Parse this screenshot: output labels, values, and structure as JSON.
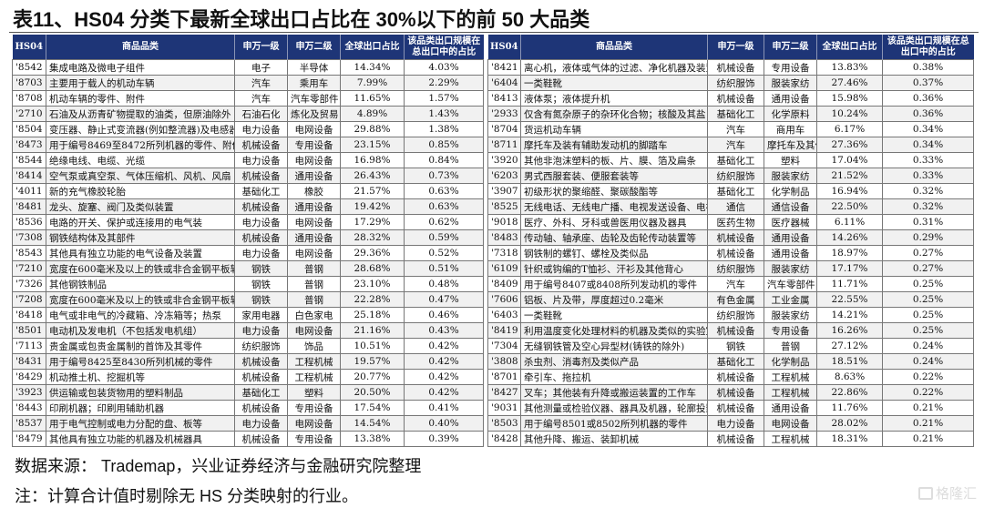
{
  "title": "表11、HS04 分类下最新全球出口占比在 30%以下的前 50 大品类",
  "columns": [
    "HS04",
    "商品品类",
    "申万一级",
    "申万二级",
    "全球出口占比",
    "该品类出口规模在总出口中的占比"
  ],
  "left_rows": [
    [
      "'8542",
      "集成电路及微电子组件",
      "电子",
      "半导体",
      "14.34%",
      "4.03%"
    ],
    [
      "'8703",
      "主要用于载人的机动车辆",
      "汽车",
      "乘用车",
      "7.99%",
      "2.29%"
    ],
    [
      "'8708",
      "机动车辆的零件、附件",
      "汽车",
      "汽车零部件",
      "11.65%",
      "1.57%"
    ],
    [
      "'2710",
      "石油及从沥青矿物提取的油类，但原油除外",
      "石油石化",
      "炼化及贸易",
      "4.89%",
      "1.43%"
    ],
    [
      "'8504",
      "变压器、静止式变流器(例如整流器)及电感器",
      "电力设备",
      "电网设备",
      "29.88%",
      "1.38%"
    ],
    [
      "'8473",
      "用于编号8469至8472所列机器的零件、附件",
      "机械设备",
      "专用设备",
      "23.15%",
      "0.85%"
    ],
    [
      "'8544",
      "绝缘电线、电缆、光缆",
      "电力设备",
      "电网设备",
      "16.98%",
      "0.84%"
    ],
    [
      "'8414",
      "空气泵或真空泵、气体压缩机、风机、风扇",
      "机械设备",
      "通用设备",
      "26.43%",
      "0.73%"
    ],
    [
      "'4011",
      "新的充气橡胶轮胎",
      "基础化工",
      "橡胶",
      "21.57%",
      "0.63%"
    ],
    [
      "'8481",
      "龙头、旋塞、阀门及类似装置",
      "机械设备",
      "通用设备",
      "19.42%",
      "0.63%"
    ],
    [
      "'8536",
      "电路的开关、保护或连接用的电气装",
      "电力设备",
      "电网设备",
      "17.29%",
      "0.62%"
    ],
    [
      "'7308",
      "钢铁结构体及其部件",
      "机械设备",
      "通用设备",
      "28.32%",
      "0.59%"
    ],
    [
      "'8543",
      "其他具有独立功能的电气设备及装置",
      "电力设备",
      "电网设备",
      "29.36%",
      "0.52%"
    ],
    [
      "'7210",
      "宽度在600毫米及以上的铁或非合金钢平板轧材",
      "钢铁",
      "普钢",
      "28.68%",
      "0.51%"
    ],
    [
      "'7326",
      "其他钢铁制品",
      "钢铁",
      "普钢",
      "23.10%",
      "0.48%"
    ],
    [
      "'7208",
      "宽度在600毫米及以上的铁或非合金钢平板轧材",
      "钢铁",
      "普钢",
      "22.28%",
      "0.47%"
    ],
    [
      "'8418",
      "电气或非电气的冷藏箱、冷冻箱等；热泵",
      "家用电器",
      "白色家电",
      "25.18%",
      "0.46%"
    ],
    [
      "'8501",
      "电动机及发电机（不包括发电机组）",
      "电力设备",
      "电网设备",
      "21.16%",
      "0.43%"
    ],
    [
      "'7113",
      "贵金属或包贵金属制的首饰及其零件",
      "纺织服饰",
      "饰品",
      "10.51%",
      "0.42%"
    ],
    [
      "'8431",
      "用于编号8425至8430所列机械的零件",
      "机械设备",
      "工程机械",
      "19.57%",
      "0.42%"
    ],
    [
      "'8429",
      "机动推土机、挖掘机等",
      "机械设备",
      "工程机械",
      "20.77%",
      "0.42%"
    ],
    [
      "'3923",
      "供运输或包装货物用的塑料制品",
      "基础化工",
      "塑料",
      "20.50%",
      "0.42%"
    ],
    [
      "'8443",
      "印刷机器；印刷用辅助机器",
      "机械设备",
      "专用设备",
      "17.54%",
      "0.41%"
    ],
    [
      "'8537",
      "用于电气控制或电力分配的盘、板等",
      "电力设备",
      "电网设备",
      "14.54%",
      "0.40%"
    ],
    [
      "'8479",
      "其他具有独立功能的机器及机械器具",
      "机械设备",
      "专用设备",
      "13.38%",
      "0.39%"
    ]
  ],
  "right_rows": [
    [
      "'8421",
      "离心机，液体或气体的过滤、净化机器及装置",
      "机械设备",
      "专用设备",
      "13.83%",
      "0.38%"
    ],
    [
      "'6404",
      "一类鞋靴",
      "纺织服饰",
      "服装家纺",
      "27.46%",
      "0.37%"
    ],
    [
      "'8413",
      "液体泵；液体提升机",
      "机械设备",
      "通用设备",
      "15.98%",
      "0.36%"
    ],
    [
      "'2933",
      "仅含有氮杂原子的杂环化合物；核酸及其盐",
      "基础化工",
      "化学原料",
      "10.24%",
      "0.36%"
    ],
    [
      "'8704",
      "货运机动车辆",
      "汽车",
      "商用车",
      "6.17%",
      "0.34%"
    ],
    [
      "'8711",
      "摩托车及装有辅助发动机的脚踏车",
      "汽车",
      "摩托车及其他",
      "27.36%",
      "0.34%"
    ],
    [
      "'3920",
      "其他非泡沫塑料的板、片、膜、箔及扁条",
      "基础化工",
      "塑料",
      "17.04%",
      "0.33%"
    ],
    [
      "'6203",
      "男式西服套装、便服套装等",
      "纺织服饰",
      "服装家纺",
      "21.52%",
      "0.33%"
    ],
    [
      "'3907",
      "初级形状的聚缩醛、聚碳酸酯等",
      "基础化工",
      "化学制品",
      "16.94%",
      "0.32%"
    ],
    [
      "'8525",
      "无线电话、无线电广播、电视发送设备、电视摄像机",
      "通信",
      "通信设备",
      "22.50%",
      "0.32%"
    ],
    [
      "'9018",
      "医疗、外科、牙科或兽医用仪器及器具",
      "医药生物",
      "医疗器械",
      "6.11%",
      "0.31%"
    ],
    [
      "'8483",
      "传动轴、轴承座、齿轮及齿轮传动装置等",
      "机械设备",
      "通用设备",
      "14.26%",
      "0.29%"
    ],
    [
      "'7318",
      "钢铁制的螺钉、螺栓及类似品",
      "机械设备",
      "通用设备",
      "18.97%",
      "0.27%"
    ],
    [
      "'6109",
      "针织或钩编的T恤衫、汗衫及其他背心",
      "纺织服饰",
      "服装家纺",
      "17.17%",
      "0.27%"
    ],
    [
      "'8409",
      "用于编号8407或8408所列发动机的零件",
      "汽车",
      "汽车零部件",
      "11.71%",
      "0.25%"
    ],
    [
      "'7606",
      "铝板、片及带，厚度超过0.2毫米",
      "有色金属",
      "工业金属",
      "22.55%",
      "0.25%"
    ],
    [
      "'6403",
      "一类鞋靴",
      "纺织服饰",
      "服装家纺",
      "14.21%",
      "0.25%"
    ],
    [
      "'8419",
      "利用温度变化处理材料的机器及类似的实验室设备",
      "机械设备",
      "专用设备",
      "16.26%",
      "0.25%"
    ],
    [
      "'7304",
      "无缝钢铁管及空心异型材(铸铁的除外)",
      "钢铁",
      "普钢",
      "27.12%",
      "0.24%"
    ],
    [
      "'3808",
      "杀虫剂、消毒剂及类似产品",
      "基础化工",
      "化学制品",
      "18.51%",
      "0.24%"
    ],
    [
      "'8701",
      "牵引车、拖拉机",
      "机械设备",
      "工程机械",
      "8.63%",
      "0.22%"
    ],
    [
      "'8427",
      "叉车；其他装有升降或搬运装置的工作车",
      "机械设备",
      "工程机械",
      "22.86%",
      "0.22%"
    ],
    [
      "'9031",
      "其他测量或检验仪器、器具及机器，轮廓投影仪",
      "机械设备",
      "通用设备",
      "11.76%",
      "0.21%"
    ],
    [
      "'8503",
      "用于编号8501或8502所列机器的零件",
      "电力设备",
      "电网设备",
      "28.02%",
      "0.21%"
    ],
    [
      "'8428",
      "其他升降、搬运、装卸机械",
      "机械设备",
      "工程机械",
      "18.31%",
      "0.21%"
    ]
  ],
  "source": "数据来源：  Trademap，兴业证券经济与金融研究院整理",
  "note": "注：计算合计值时剔除无 HS 分类映射的行业。",
  "watermark": "格隆汇",
  "colors": {
    "header_bg": "#1e3577",
    "alt_row": "#f1f1f1"
  }
}
